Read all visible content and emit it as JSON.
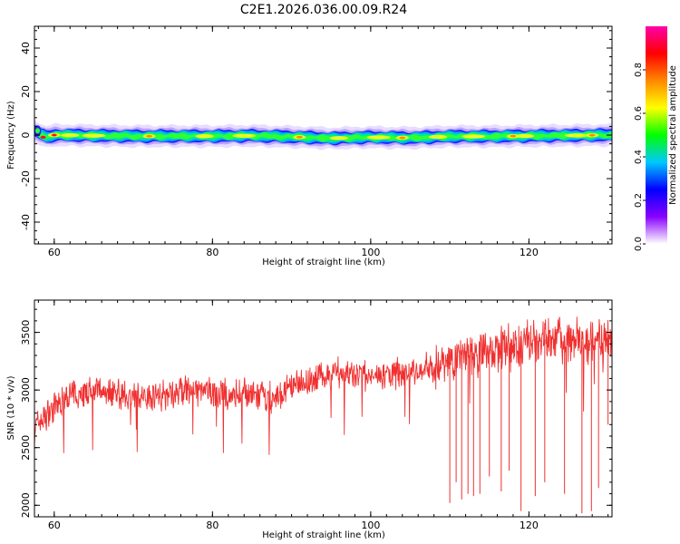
{
  "title": "C2E1.2026.036.00.09.R24",
  "chart_data": [
    {
      "type": "heatmap",
      "title": "",
      "xlabel": "Height of straight line (km)",
      "ylabel": "Frequency (Hz)",
      "xlim": [
        57.5,
        130.5
      ],
      "ylim": [
        -50,
        50
      ],
      "xticks": [
        60,
        80,
        100,
        120
      ],
      "yticks": [
        40,
        20,
        0,
        -20,
        -40
      ],
      "xtick_labels": [
        "60",
        "80",
        "100",
        "120"
      ],
      "ytick_labels": [
        "40",
        "20",
        "0",
        "-20",
        "-40"
      ],
      "grid": false,
      "ridge_frequency_hz": [
        [
          57.5,
          2
        ],
        [
          58,
          1
        ],
        [
          58.5,
          0
        ],
        [
          59,
          -1
        ],
        [
          60,
          0
        ],
        [
          70,
          -0.5
        ],
        [
          80,
          -0.5
        ],
        [
          85,
          -0.3
        ],
        [
          90,
          -0.8
        ],
        [
          95,
          -1.5
        ],
        [
          100,
          -1.0
        ],
        [
          105,
          -1.3
        ],
        [
          110,
          -0.6
        ],
        [
          115,
          -0.6
        ],
        [
          120,
          -0.4
        ],
        [
          125,
          -0.2
        ],
        [
          130,
          0
        ]
      ],
      "colorbar": {
        "label": "Normalized spectral amplitude",
        "range": [
          0,
          1
        ],
        "ticks": [
          0.0,
          0.2,
          0.4,
          0.6,
          0.8
        ],
        "tick_labels": [
          "0.0",
          "0.2",
          "0.4",
          "0.6",
          "0.8"
        ],
        "colors": [
          "#ffffff",
          "#8800ff",
          "#0000ff",
          "#00c8ff",
          "#00ff00",
          "#ffff00",
          "#ff8800",
          "#ff0000",
          "#ff00aa"
        ]
      }
    },
    {
      "type": "line",
      "title": "",
      "xlabel": "Height of straight line (km)",
      "ylabel": "SNR (10 * v/v)",
      "xlim": [
        57.5,
        130.5
      ],
      "ylim": [
        1900,
        3780
      ],
      "xticks": [
        60,
        80,
        100,
        120
      ],
      "yticks": [
        2000,
        2500,
        3000,
        3500
      ],
      "xtick_labels": [
        "60",
        "80",
        "100",
        "120"
      ],
      "ytick_labels": [
        "2000",
        "2500",
        "3000",
        "3500"
      ],
      "grid": false,
      "series": [
        {
          "color": "#f03030",
          "x": [
            57.5,
            60,
            62,
            64,
            66,
            68,
            70,
            72,
            74,
            76,
            78,
            80,
            82,
            84,
            86,
            88,
            90,
            92,
            94,
            96,
            98,
            100,
            102,
            104,
            106,
            108,
            110,
            112,
            114,
            116,
            118,
            120,
            122,
            124,
            126,
            128,
            130
          ],
          "values": [
            2680,
            2850,
            2950,
            2980,
            3000,
            2980,
            2930,
            2950,
            2960,
            2990,
            2980,
            2980,
            2950,
            2970,
            2940,
            2920,
            3020,
            3080,
            3120,
            3150,
            3130,
            3120,
            3130,
            3150,
            3170,
            3200,
            3250,
            3320,
            3330,
            3330,
            3380,
            3420,
            3440,
            3450,
            3420,
            3440,
            3450
          ]
        }
      ],
      "dropouts": [
        {
          "x": 110.0,
          "y": 2020
        },
        {
          "x": 110.8,
          "y": 2200
        },
        {
          "x": 111.5,
          "y": 2050
        },
        {
          "x": 112.3,
          "y": 2100
        },
        {
          "x": 113.0,
          "y": 2080
        },
        {
          "x": 113.8,
          "y": 2100
        },
        {
          "x": 115.0,
          "y": 2250
        },
        {
          "x": 116.5,
          "y": 2120
        },
        {
          "x": 117.5,
          "y": 2300
        },
        {
          "x": 119.0,
          "y": 1950
        },
        {
          "x": 120.8,
          "y": 2080
        },
        {
          "x": 122.0,
          "y": 2200
        },
        {
          "x": 124.5,
          "y": 2100
        },
        {
          "x": 126.7,
          "y": 1930
        },
        {
          "x": 127.9,
          "y": 1950
        },
        {
          "x": 128.8,
          "y": 2150
        },
        {
          "x": 130.0,
          "y": 2700
        }
      ]
    }
  ]
}
